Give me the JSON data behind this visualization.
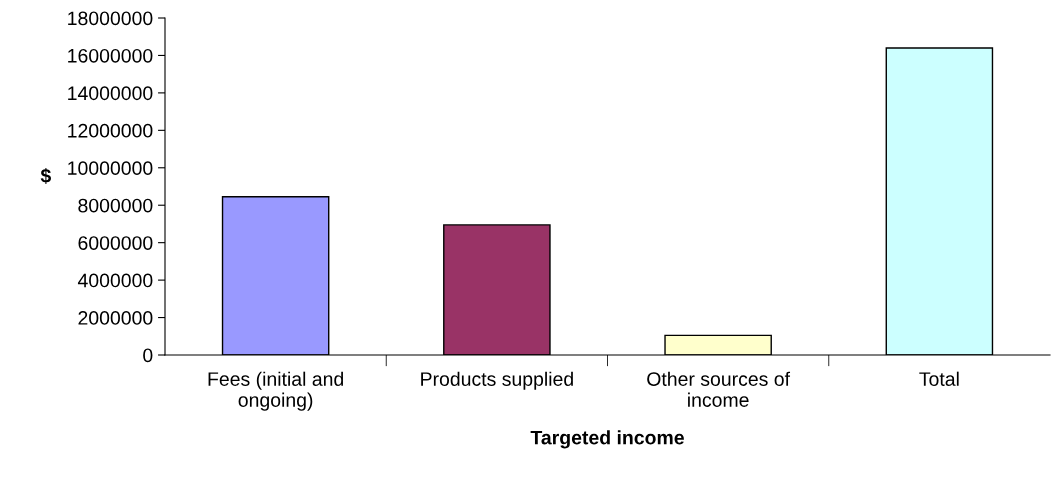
{
  "chart_data": {
    "type": "bar",
    "xlabel": "Targeted income",
    "ylabel": "$",
    "categories": [
      "Fees (initial and\nongoing)",
      "Products supplied",
      "Other sources of\nincome",
      "Total"
    ],
    "values": [
      8450000,
      6950000,
      1050000,
      16400000
    ],
    "colors": [
      "#9999ff",
      "#993366",
      "#ffffcc",
      "#ccffff"
    ],
    "ylim": [
      0,
      18000000
    ],
    "yticks": [
      0,
      2000000,
      4000000,
      6000000,
      8000000,
      10000000,
      12000000,
      14000000,
      16000000,
      18000000
    ],
    "grid": false,
    "legend": false
  }
}
